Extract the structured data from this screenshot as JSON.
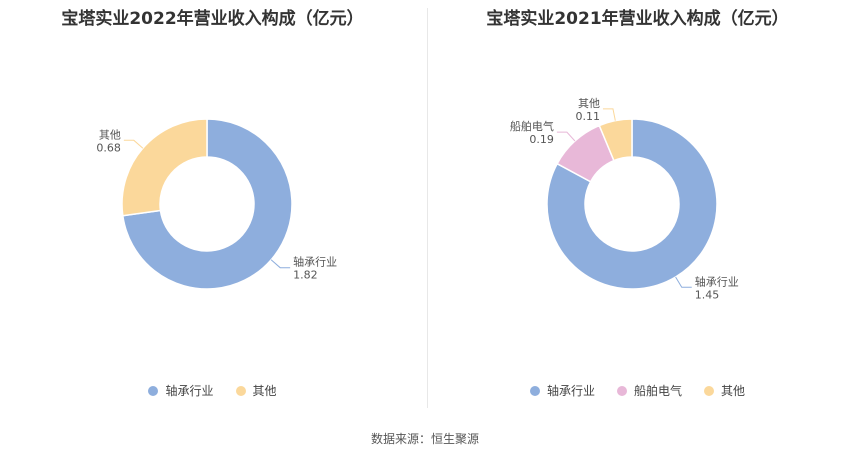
{
  "colors": {
    "bearing": "#8eaedd",
    "ship": "#e8b8d8",
    "other": "#fbd89b"
  },
  "chart_data": [
    {
      "type": "pie",
      "title": "宝塔实业2022年营业收入构成（亿元）",
      "slices": [
        {
          "label": "轴承行业",
          "value": 1.82,
          "value_text": "1.82",
          "color_key": "bearing"
        },
        {
          "label": "其他",
          "value": 0.68,
          "value_text": "0.68",
          "color_key": "other"
        }
      ],
      "legend": [
        "轴承行业",
        "其他"
      ],
      "legend_position": "bottom"
    },
    {
      "type": "pie",
      "title": "宝塔实业2021年营业收入构成（亿元）",
      "slices": [
        {
          "label": "轴承行业",
          "value": 1.45,
          "value_text": "1.45",
          "color_key": "bearing"
        },
        {
          "label": "船舶电气",
          "value": 0.19,
          "value_text": "0.19",
          "color_key": "ship"
        },
        {
          "label": "其他",
          "value": 0.11,
          "value_text": "0.11",
          "color_key": "other"
        }
      ],
      "legend": [
        "轴承行业",
        "船舶电气",
        "其他"
      ],
      "legend_position": "bottom"
    }
  ],
  "source": "数据来源：恒生聚源"
}
